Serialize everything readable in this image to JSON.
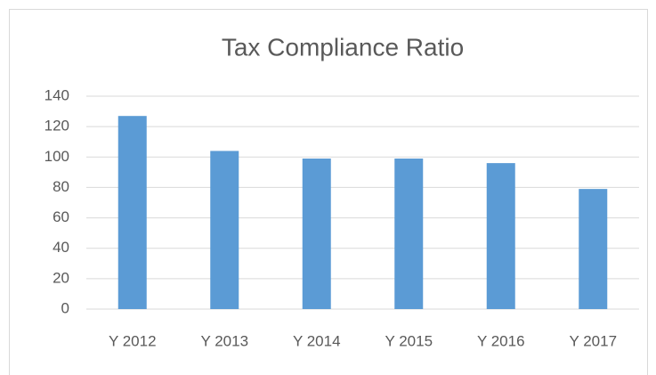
{
  "chart_data": {
    "type": "bar",
    "title": "Tax Compliance Ratio",
    "categories": [
      "Y 2012",
      "Y 2013",
      "Y 2014",
      "Y 2015",
      "Y 2016",
      "Y 2017"
    ],
    "values": [
      127,
      104,
      99,
      99,
      96,
      79
    ],
    "color": "#5b9bd5",
    "ylim": [
      0,
      140
    ],
    "yticks": [
      0,
      20,
      40,
      60,
      80,
      100,
      120,
      140
    ],
    "grid": true
  }
}
